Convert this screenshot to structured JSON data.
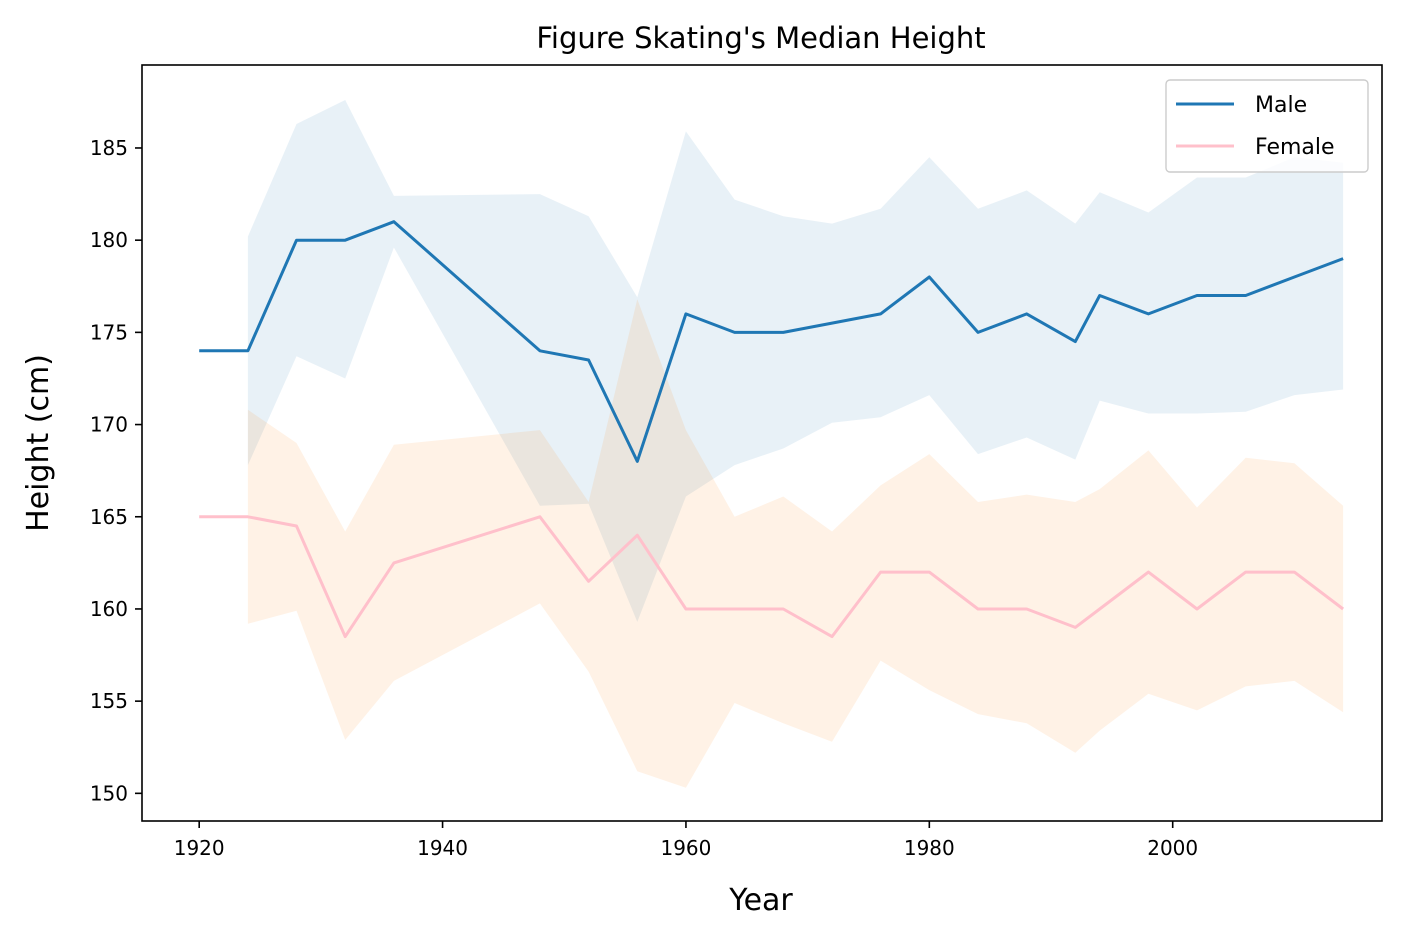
{
  "chart_data": {
    "type": "line",
    "title": "Figure Skating's Median Height",
    "xlabel": "Year",
    "ylabel": "Height (cm)",
    "xlim": [
      1915.3,
      2017.2
    ],
    "ylim": [
      148.5,
      189.5
    ],
    "xticks": [
      1920,
      1940,
      1960,
      1980,
      2000
    ],
    "yticks": [
      150,
      155,
      160,
      165,
      170,
      175,
      180,
      185
    ],
    "grid": false,
    "legend_position": "top-right",
    "series": [
      {
        "name": "Male",
        "color": "#1f77b4",
        "x": [
          1920,
          1924,
          1928,
          1932,
          1936,
          1948,
          1952,
          1956,
          1960,
          1964,
          1968,
          1972,
          1976,
          1980,
          1984,
          1988,
          1992,
          1994,
          1998,
          2002,
          2006,
          2010,
          2014
        ],
        "values": [
          174,
          174,
          180,
          180,
          181,
          174,
          173.5,
          168,
          176,
          175,
          175,
          175.5,
          176,
          178,
          175,
          176,
          174.5,
          177,
          176,
          177,
          177,
          178,
          179
        ]
      },
      {
        "name": "Female",
        "color": "#ffc0cb",
        "x": [
          1920,
          1924,
          1928,
          1932,
          1936,
          1948,
          1952,
          1956,
          1960,
          1964,
          1968,
          1972,
          1976,
          1980,
          1984,
          1988,
          1992,
          1994,
          1998,
          2002,
          2006,
          2010,
          2014
        ],
        "values": [
          165,
          165,
          164.5,
          158.5,
          162.5,
          165,
          161.5,
          164,
          160,
          160,
          160,
          158.5,
          162,
          162,
          160,
          160,
          159,
          160,
          162,
          160,
          162,
          162,
          160
        ]
      }
    ],
    "bands": [
      {
        "series": "Male",
        "color": "#1f77b4",
        "opacity": 0.1,
        "x": [
          1924,
          1928,
          1932,
          1936,
          1948,
          1952,
          1956,
          1960,
          1964,
          1968,
          1972,
          1976,
          1980,
          1984,
          1988,
          1992,
          1994,
          1998,
          2002,
          2006,
          2010,
          2014
        ],
        "lower": [
          167.8,
          173.7,
          172.5,
          179.6,
          165.6,
          165.7,
          159.3,
          166.1,
          167.8,
          168.7,
          170.1,
          170.4,
          171.6,
          168.4,
          169.3,
          168.1,
          171.3,
          170.6,
          170.6,
          170.7,
          171.6,
          171.9
        ],
        "upper": [
          180.2,
          186.3,
          187.6,
          182.4,
          182.5,
          181.3,
          176.9,
          185.9,
          182.2,
          181.3,
          180.9,
          181.7,
          184.5,
          181.7,
          182.7,
          180.9,
          182.6,
          181.5,
          183.4,
          183.4,
          184.5,
          184.2
        ]
      },
      {
        "series": "Female",
        "color": "#ff7f0e",
        "opacity": 0.1,
        "x": [
          1924,
          1928,
          1932,
          1936,
          1948,
          1952,
          1956,
          1960,
          1964,
          1968,
          1972,
          1976,
          1980,
          1984,
          1988,
          1992,
          1994,
          1998,
          2002,
          2006,
          2010,
          2014
        ],
        "lower": [
          159.2,
          159.9,
          152.9,
          156.1,
          160.3,
          156.6,
          151.2,
          150.3,
          154.9,
          153.8,
          152.8,
          157.2,
          155.6,
          154.3,
          153.8,
          152.2,
          153.4,
          155.4,
          154.5,
          155.8,
          156.1,
          154.4
        ],
        "upper": [
          170.8,
          169.0,
          164.2,
          168.9,
          169.7,
          165.8,
          176.8,
          169.7,
          165.0,
          166.1,
          164.2,
          166.7,
          168.4,
          165.8,
          166.2,
          165.8,
          166.5,
          168.6,
          165.5,
          168.2,
          167.9,
          165.6
        ]
      }
    ]
  }
}
